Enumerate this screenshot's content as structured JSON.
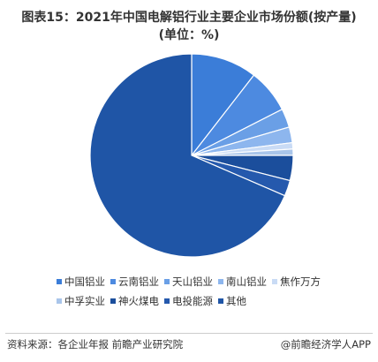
{
  "chart_data": {
    "type": "pie",
    "title": "图表15：2021年中国电解铝行业主要企业市场份额(按产量)(单位：%)",
    "categories": [
      "中国铝业",
      "云南铝业",
      "天山铝业",
      "南山铝业",
      "焦作万方",
      "中孚实业",
      "神火煤电",
      "电投能源",
      "其他"
    ],
    "values": [
      10.5,
      7,
      3,
      2.5,
      1,
      1,
      4,
      2.5,
      68.5
    ],
    "colors": [
      "#3b7dd8",
      "#4d8ae0",
      "#6a9fe6",
      "#8db6ee",
      "#c9dbf5",
      "#a9c5ea",
      "#1b4e9c",
      "#2559ad",
      "#1f55a6"
    ],
    "source": "资料来源：各企业年报 前瞻产业研究院",
    "credit": "@前瞻经济学人APP"
  }
}
